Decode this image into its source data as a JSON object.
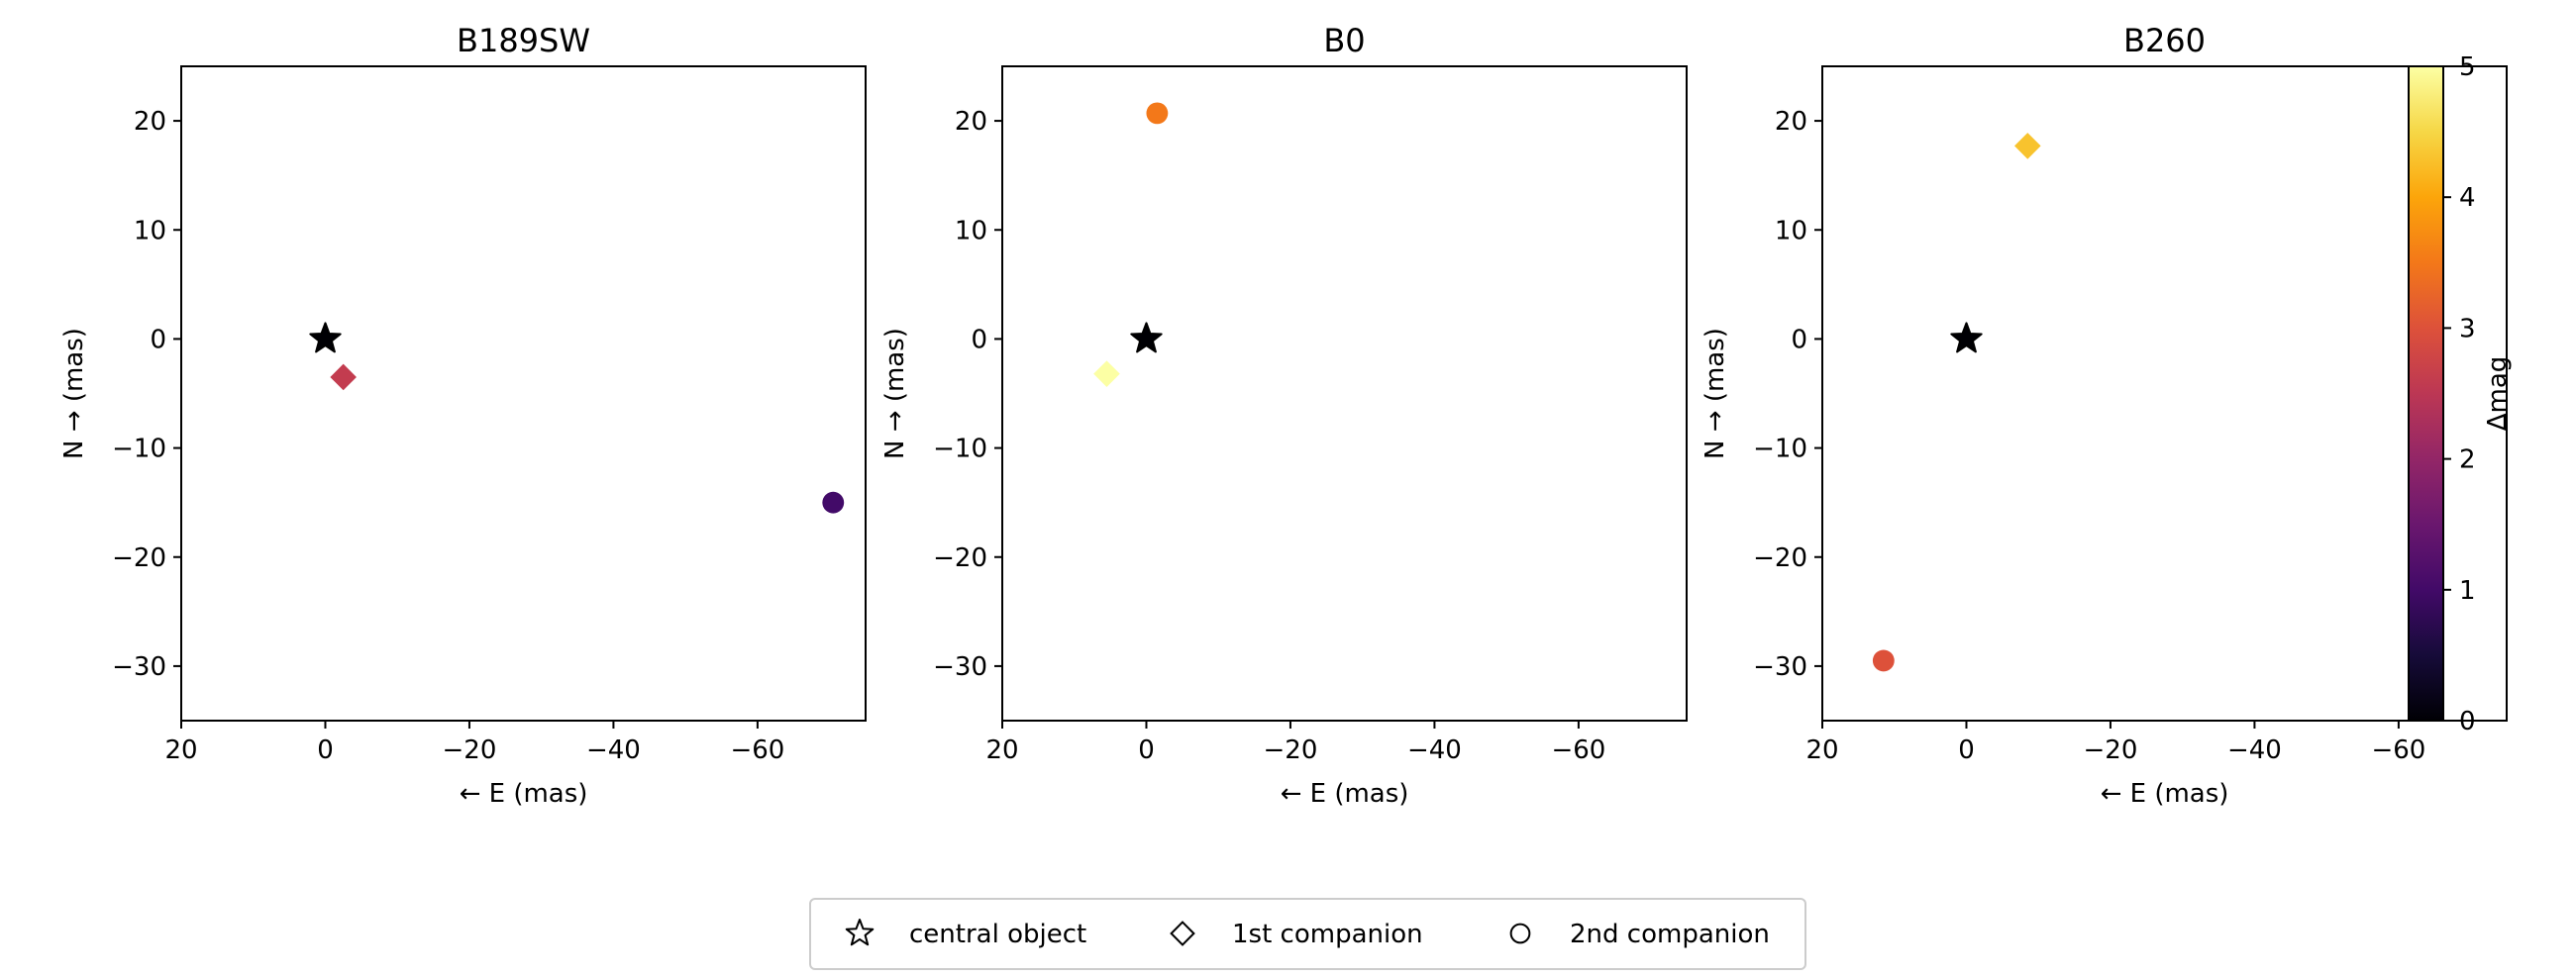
{
  "chart_data": [
    {
      "type": "scatter",
      "title": "B189SW",
      "xlabel": "← E (mas)",
      "ylabel": "N → (mas)",
      "xlim": [
        20,
        -75
      ],
      "ylim": [
        -35,
        25
      ],
      "xticks": [
        20,
        0,
        -20,
        -40,
        -60
      ],
      "yticks": [
        20,
        10,
        0,
        -10,
        -20,
        -30
      ],
      "points": [
        {
          "label": "central object",
          "marker": "star",
          "x": 0,
          "y": 0,
          "dmag": 0
        },
        {
          "label": "1st companion",
          "marker": "diamond",
          "x": -2.5,
          "y": -3.5,
          "dmag": 2.6
        },
        {
          "label": "2nd companion",
          "marker": "circle",
          "x": -70.5,
          "y": -15,
          "dmag": 1.0
        }
      ]
    },
    {
      "type": "scatter",
      "title": "B0",
      "xlabel": "← E (mas)",
      "ylabel": "N → (mas)",
      "xlim": [
        20,
        -75
      ],
      "ylim": [
        -35,
        25
      ],
      "xticks": [
        20,
        0,
        -20,
        -40,
        -60
      ],
      "yticks": [
        20,
        10,
        0,
        -10,
        -20,
        -30
      ],
      "points": [
        {
          "label": "central object",
          "marker": "star",
          "x": 0,
          "y": 0,
          "dmag": 0
        },
        {
          "label": "1st companion",
          "marker": "diamond",
          "x": 5.5,
          "y": -3.2,
          "dmag": 5.0
        },
        {
          "label": "2nd companion",
          "marker": "circle",
          "x": -1.5,
          "y": 20.7,
          "dmag": 3.5
        }
      ]
    },
    {
      "type": "scatter",
      "title": "B260",
      "xlabel": "← E (mas)",
      "ylabel": "N → (mas)",
      "xlim": [
        20,
        -75
      ],
      "ylim": [
        -35,
        25
      ],
      "xticks": [
        20,
        0,
        -20,
        -40,
        -60
      ],
      "yticks": [
        20,
        10,
        0,
        -10,
        -20,
        -30
      ],
      "points": [
        {
          "label": "central object",
          "marker": "star",
          "x": 0,
          "y": 0,
          "dmag": 0
        },
        {
          "label": "1st companion",
          "marker": "diamond",
          "x": -8.5,
          "y": 17.7,
          "dmag": 4.3
        },
        {
          "label": "2nd companion",
          "marker": "circle",
          "x": 11.5,
          "y": -29.5,
          "dmag": 3.0
        }
      ]
    }
  ],
  "colorbar": {
    "label": "Δmag",
    "range": [
      0,
      5
    ],
    "ticks": [
      0,
      1,
      2,
      3,
      4,
      5
    ],
    "colormap": "inferno"
  },
  "legend": {
    "position": "bottom-center",
    "items": [
      {
        "marker": "star",
        "label": "central object"
      },
      {
        "marker": "diamond",
        "label": "1st companion"
      },
      {
        "marker": "circle",
        "label": "2nd companion"
      }
    ]
  }
}
